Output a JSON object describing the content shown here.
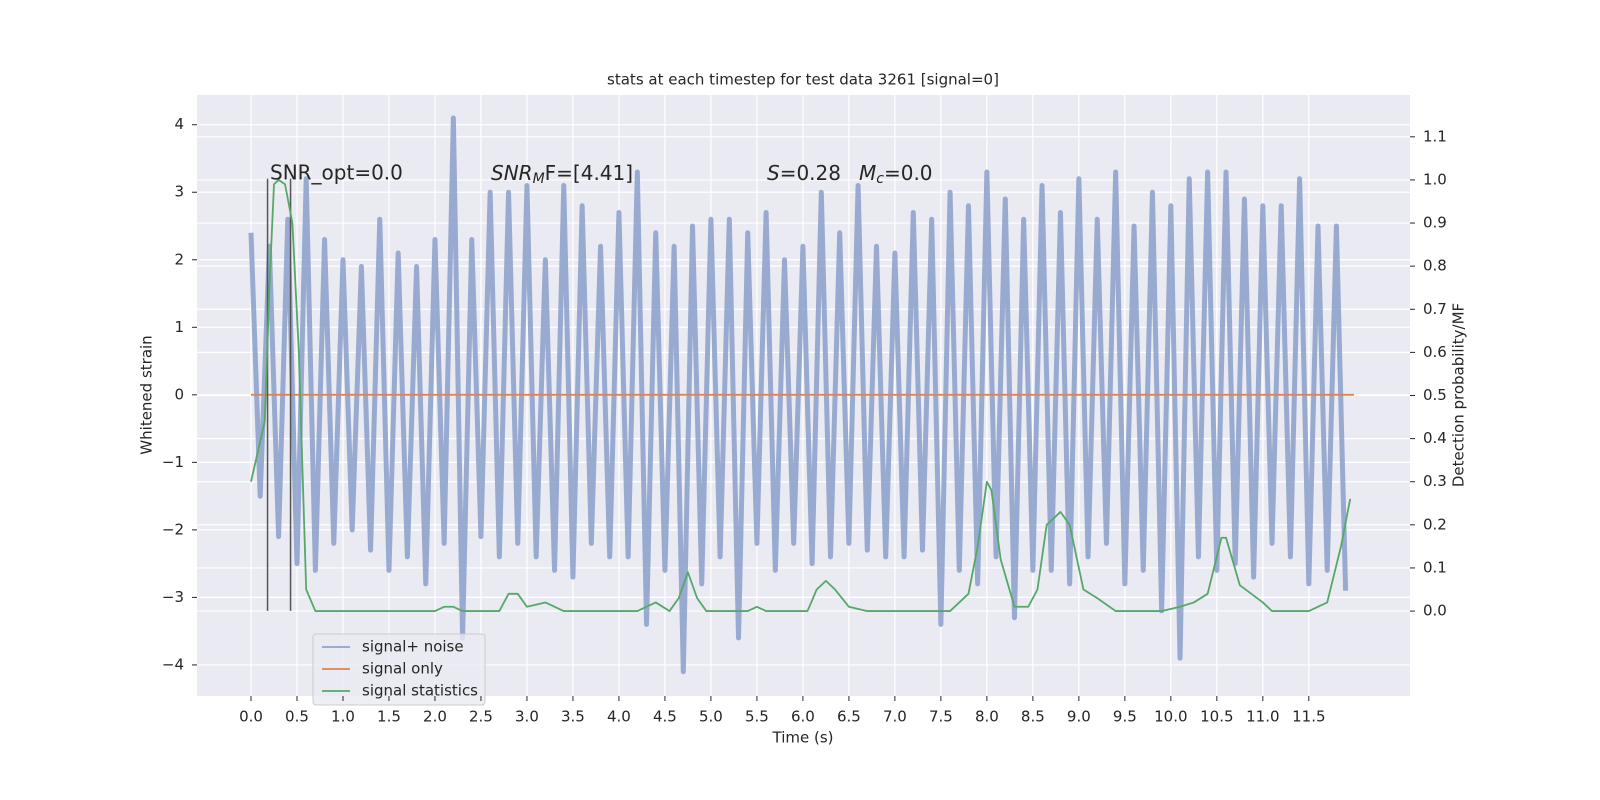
{
  "chart_data": {
    "type": "line",
    "title": "stats at each timestep for test data 3261 [signal=0]",
    "x_label": "Time (s)",
    "y_label": "Whitened strain",
    "y2_label": "Detection probability/MF",
    "grid": true,
    "legend": "lower left",
    "xlim": [
      -0.587,
      12.6
    ],
    "ylim": [
      -4.46,
      4.44
    ],
    "y2lim": [
      -0.197,
      1.197
    ],
    "xticks": [
      {
        "value": 0,
        "label": "0.0"
      },
      0.5,
      {
        "value": 1,
        "label": "1.0"
      },
      1.5,
      {
        "value": 2,
        "label": "2.0"
      },
      2.5,
      {
        "value": 3,
        "label": "3.0"
      },
      3.5,
      {
        "value": 4,
        "label": "4.0"
      },
      4.5,
      {
        "value": 5,
        "label": "5.0"
      },
      5.5,
      {
        "value": 6,
        "label": "6.0"
      },
      6.5,
      {
        "value": 7,
        "label": "7.0"
      },
      7.5,
      {
        "value": 8,
        "label": "8.0"
      },
      8.5,
      {
        "value": 9,
        "label": "9.0"
      },
      9.5,
      {
        "value": 10,
        "label": "10.0"
      },
      10.5,
      {
        "value": 11,
        "label": "11.0"
      },
      11.5
    ],
    "yticks": [
      {
        "value": -4,
        "label": "−4"
      },
      {
        "value": -3,
        "label": "−3"
      },
      {
        "value": -2,
        "label": "−2"
      },
      {
        "value": -1,
        "label": "−1"
      },
      0,
      1,
      2,
      3,
      4
    ],
    "y2ticks": [
      {
        "value": 0,
        "label": "0.0"
      },
      0.1,
      0.2,
      0.3,
      0.4,
      0.5,
      0.6,
      0.7,
      0.8,
      0.9,
      {
        "value": 1,
        "label": "1.0"
      },
      1.1
    ],
    "series": [
      {
        "name": "signal+ noise",
        "color": "#8fa3cc",
        "axis": "y",
        "x": [
          0,
          0.1,
          0.2,
          0.3,
          0.4,
          0.5,
          0.6,
          0.7,
          0.8,
          0.9,
          1,
          1.1,
          1.2,
          1.3,
          1.4,
          1.5,
          1.6,
          1.7,
          1.8,
          1.9,
          2,
          2.1,
          2.2,
          2.3,
          2.4,
          2.5,
          2.6,
          2.7,
          2.8,
          2.9,
          3,
          3.1,
          3.2,
          3.3,
          3.4,
          3.5,
          3.6,
          3.7,
          3.8,
          3.9,
          4,
          4.1,
          4.2,
          4.3,
          4.4,
          4.5,
          4.6,
          4.7,
          4.8,
          4.9,
          5,
          5.1,
          5.2,
          5.3,
          5.4,
          5.5,
          5.6,
          5.7,
          5.8,
          5.9,
          6,
          6.1,
          6.2,
          6.3,
          6.4,
          6.5,
          6.6,
          6.7,
          6.8,
          6.9,
          7,
          7.1,
          7.2,
          7.3,
          7.4,
          7.5,
          7.6,
          7.7,
          7.8,
          7.9,
          8,
          8.1,
          8.2,
          8.3,
          8.4,
          8.5,
          8.6,
          8.7,
          8.8,
          8.9,
          9,
          9.1,
          9.2,
          9.3,
          9.4,
          9.5,
          9.6,
          9.7,
          9.8,
          9.9,
          10,
          10.1,
          10.2,
          10.3,
          10.4,
          10.5,
          10.6,
          10.7,
          10.8,
          10.9,
          11,
          11.1,
          11.2,
          11.3,
          11.4,
          11.5,
          11.6,
          11.7,
          11.8,
          11.9
        ],
        "values": [
          2.4,
          -1.5,
          2.2,
          -2.1,
          2.6,
          -2.5,
          3.2,
          -2.6,
          2.3,
          -2.2,
          2.0,
          -2.0,
          1.9,
          -2.3,
          2.6,
          -2.6,
          2.1,
          -2.4,
          1.9,
          -2.8,
          2.3,
          -2.2,
          4.1,
          -3.6,
          2.3,
          -2.1,
          3.0,
          -2.4,
          3.0,
          -2.2,
          3.1,
          -2.4,
          2.0,
          -2.6,
          3.1,
          -2.7,
          2.8,
          -2.2,
          2.2,
          -2.4,
          2.7,
          -2.4,
          3.3,
          -3.4,
          2.4,
          -2.6,
          2.2,
          -4.1,
          2.5,
          -2.8,
          2.6,
          -2.4,
          2.6,
          -3.6,
          2.4,
          -2.2,
          2.7,
          -2.6,
          2.0,
          -2.2,
          2.2,
          -2.5,
          3.0,
          -2.4,
          2.4,
          -2.2,
          3.1,
          -2.3,
          2.2,
          -2.4,
          2.1,
          -2.4,
          2.7,
          -2.3,
          2.6,
          -3.4,
          3.0,
          -2.6,
          2.8,
          -2.8,
          3.3,
          -2.4,
          2.9,
          -3.3,
          2.6,
          -2.6,
          3.1,
          -2.6,
          2.7,
          -2.8,
          3.2,
          -2.4,
          2.6,
          -2.2,
          3.3,
          -2.8,
          2.5,
          -2.6,
          3.0,
          -3.2,
          2.8,
          -3.9,
          3.2,
          -2.4,
          3.3,
          -2.6,
          3.3,
          -2.5,
          2.9,
          -2.7,
          2.8,
          -2.2,
          2.8,
          -2.4,
          3.2,
          -2.8,
          2.5,
          -2.6,
          2.5,
          -2.9
        ]
      },
      {
        "name": "signal only",
        "color": "#dd8452",
        "axis": "y",
        "x": [
          0,
          11.99
        ],
        "values": [
          0,
          0
        ]
      },
      {
        "name": "signal statistics",
        "color": "#55a868",
        "axis": "y2",
        "x": [
          0,
          0.15,
          0.2,
          0.25,
          0.3,
          0.37,
          0.45,
          0.52,
          0.6,
          0.7,
          2.0,
          2.1,
          2.2,
          2.3,
          2.7,
          2.8,
          2.9,
          3.0,
          3.2,
          3.4,
          4.2,
          4.4,
          4.55,
          4.65,
          4.75,
          4.85,
          4.95,
          5.4,
          5.5,
          5.6,
          6.05,
          6.15,
          6.25,
          6.35,
          6.5,
          6.7,
          7.6,
          7.8,
          7.9,
          8.0,
          8.05,
          8.15,
          8.3,
          8.45,
          8.55,
          8.65,
          8.8,
          8.9,
          9.05,
          9.2,
          9.4,
          9.9,
          10.1,
          10.25,
          10.4,
          10.55,
          10.6,
          10.75,
          11.0,
          11.1,
          11.5,
          11.7,
          11.85,
          11.95
        ],
        "values": [
          0.3,
          0.44,
          0.75,
          0.99,
          1.0,
          0.99,
          0.9,
          0.6,
          0.05,
          0.0,
          0.0,
          0.01,
          0.01,
          0.0,
          0.0,
          0.04,
          0.04,
          0.01,
          0.02,
          0.0,
          0.0,
          0.02,
          0.0,
          0.03,
          0.09,
          0.03,
          0.0,
          0.0,
          0.01,
          0.0,
          0.0,
          0.05,
          0.07,
          0.05,
          0.01,
          0.0,
          0.0,
          0.04,
          0.15,
          0.3,
          0.28,
          0.12,
          0.01,
          0.01,
          0.05,
          0.2,
          0.23,
          0.2,
          0.05,
          0.03,
          0.0,
          0.0,
          0.01,
          0.02,
          0.04,
          0.17,
          0.17,
          0.06,
          0.02,
          0.0,
          0.0,
          0.02,
          0.15,
          0.26
        ]
      }
    ],
    "vlines": [
      {
        "x": 0.18,
        "ymin": -3.2,
        "ymax": 3.2
      },
      {
        "x": 0.43,
        "ymin": -3.2,
        "ymax": 3.2
      }
    ],
    "annotations": {
      "snr_opt": "SNR_opt=0.0",
      "snr_mf": [
        "SNR",
        "M",
        "F=[4.41]"
      ],
      "s": [
        "S",
        "=0.28"
      ],
      "mc": [
        "M",
        "c",
        "=0.0"
      ]
    }
  }
}
